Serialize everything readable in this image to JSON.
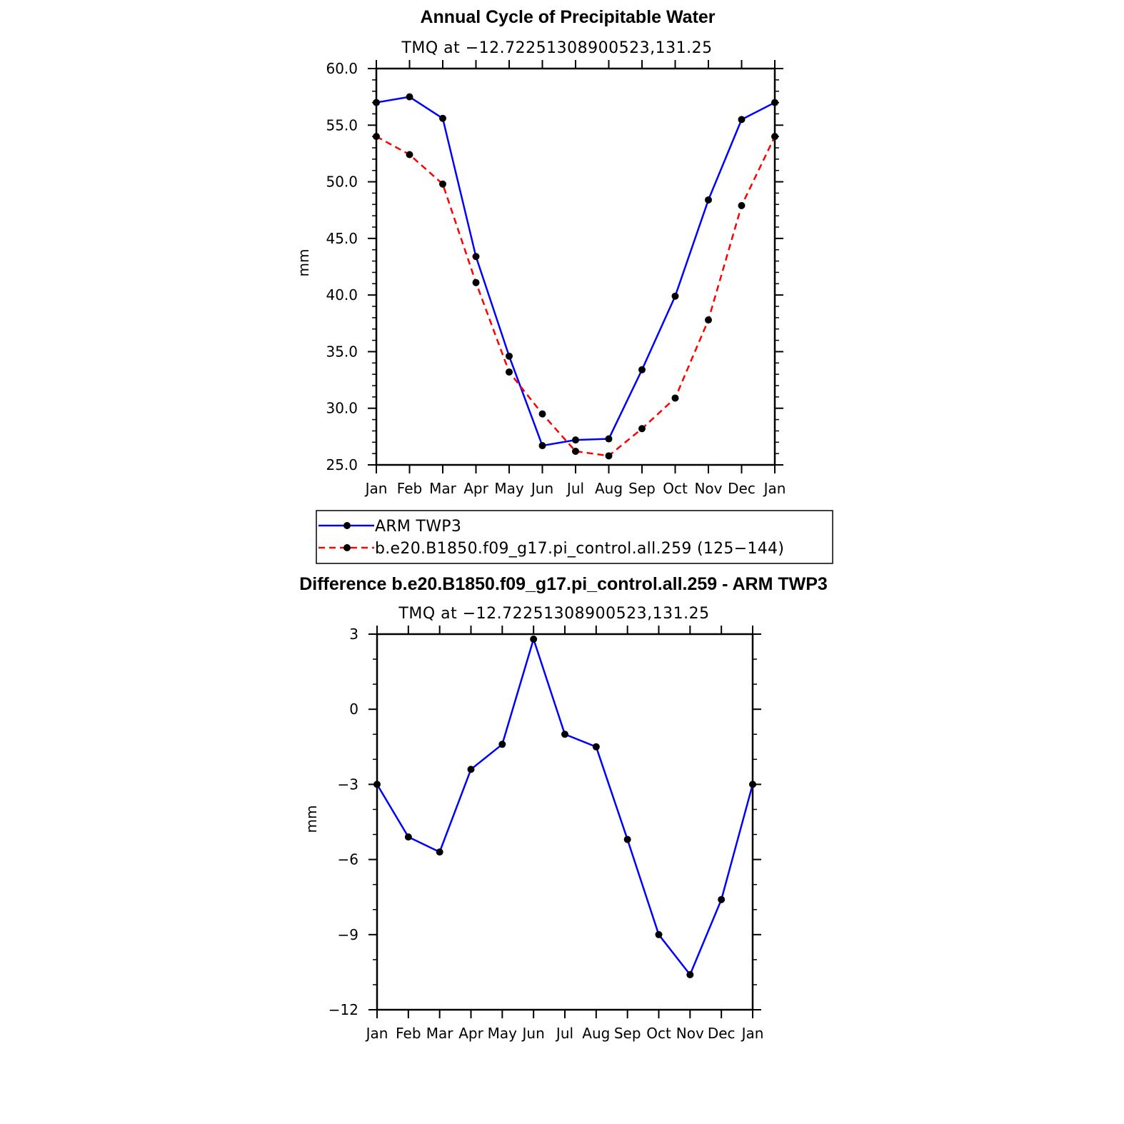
{
  "chart_data": [
    {
      "type": "line",
      "title": "Annual Cycle of Precipitable Water",
      "subtitle": "TMQ at −12.72251308900523,131.25",
      "xlabel": "",
      "ylabel": "mm",
      "categories": [
        "Jan",
        "Feb",
        "Mar",
        "Apr",
        "May",
        "Jun",
        "Jul",
        "Aug",
        "Sep",
        "Oct",
        "Nov",
        "Dec",
        "Jan"
      ],
      "ylim": [
        25.0,
        60.0
      ],
      "yticks": [
        "25.0",
        "30.0",
        "35.0",
        "40.0",
        "45.0",
        "50.0",
        "55.0",
        "60.0"
      ],
      "grid": false,
      "legend_position": "bottom",
      "series": [
        {
          "name": "ARM TWP3",
          "color": "#0000ff",
          "style": "solid",
          "values": [
            57.0,
            57.5,
            55.6,
            43.4,
            34.6,
            26.7,
            27.2,
            27.3,
            33.4,
            39.9,
            48.4,
            55.5,
            57.0
          ]
        },
        {
          "name": "b.e20.B1850.f09_g17.pi_control.all.259 (125−144)",
          "color": "#ff0000",
          "style": "dashed",
          "values": [
            54.0,
            52.4,
            49.8,
            41.1,
            33.2,
            29.5,
            26.2,
            25.8,
            28.2,
            30.9,
            37.8,
            47.9,
            54.0
          ]
        }
      ]
    },
    {
      "type": "line",
      "title": "Difference b.e20.B1850.f09_g17.pi_control.all.259 - ARM TWP3",
      "subtitle": "TMQ at −12.72251308900523,131.25",
      "xlabel": "",
      "ylabel": "mm",
      "categories": [
        "Jan",
        "Feb",
        "Mar",
        "Apr",
        "May",
        "Jun",
        "Jul",
        "Aug",
        "Sep",
        "Oct",
        "Nov",
        "Dec",
        "Jan"
      ],
      "ylim": [
        -12,
        3
      ],
      "yticks": [
        "−12",
        "−9",
        "−6",
        "−3",
        "0",
        "3"
      ],
      "grid": false,
      "series": [
        {
          "name": "Difference",
          "color": "#0000ff",
          "style": "solid",
          "values": [
            -3.0,
            -5.1,
            -5.7,
            -2.4,
            -1.4,
            2.8,
            -1.0,
            -1.5,
            -5.2,
            -9.0,
            -10.6,
            -7.6,
            -3.0
          ]
        }
      ]
    }
  ]
}
